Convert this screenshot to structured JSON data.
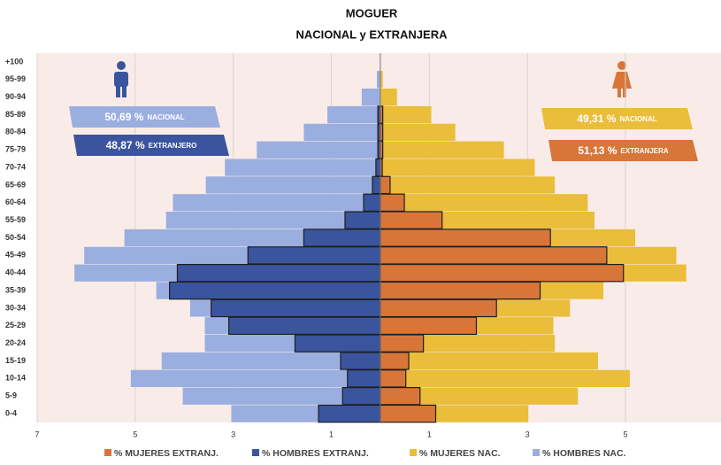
{
  "chart_data": {
    "type": "pyramid",
    "title": "MOGUER",
    "subtitle": "NACIONAL y EXTRANJERA",
    "categories": [
      "+100",
      "95-99",
      "90-94",
      "85-89",
      "80-84",
      "75-79",
      "70-74",
      "65-69",
      "60-64",
      "55-59",
      "50-54",
      "45-49",
      "40-44",
      "35-39",
      "30-34",
      "25-29",
      "20-24",
      "15-19",
      "10-14",
      "5-9",
      "0-4"
    ],
    "series": [
      {
        "name": "% MUJERES EXTRANJ.",
        "color": "#d8763a",
        "outline": true,
        "values": [
          0,
          0,
          0,
          0.05,
          0.05,
          0.05,
          0.04,
          0.2,
          0.49,
          1.26,
          3.47,
          4.62,
          4.96,
          3.26,
          2.37,
          1.96,
          0.88,
          0.58,
          0.52,
          0.81,
          1.13
        ]
      },
      {
        "name": "% HOMBRES EXTRANJ.",
        "color": "#3a559e",
        "outline": true,
        "values": [
          0,
          0,
          0,
          -0.05,
          -0.05,
          -0.05,
          -0.09,
          -0.16,
          -0.34,
          -0.72,
          -1.56,
          -2.7,
          -4.14,
          -4.3,
          -3.45,
          -3.09,
          -1.74,
          -0.81,
          -0.67,
          -0.77,
          -1.26
        ]
      },
      {
        "name": "% MUJERES NAC.",
        "color": "#eabd3a",
        "outline": false,
        "values": [
          0,
          0.05,
          0.34,
          1.04,
          1.53,
          2.52,
          3.15,
          3.56,
          4.23,
          4.37,
          5.2,
          6.04,
          6.24,
          4.55,
          3.87,
          3.53,
          3.56,
          4.44,
          5.09,
          4.03,
          3.02
        ]
      },
      {
        "name": "% HOMBRES NAC.",
        "color": "#9aaee0",
        "outline": false,
        "values": [
          0,
          -0.07,
          -0.38,
          -1.08,
          -1.56,
          -2.52,
          -3.17,
          -3.56,
          -4.23,
          -4.37,
          -5.22,
          -6.04,
          -6.24,
          -4.57,
          -3.88,
          -3.58,
          -3.58,
          -4.46,
          -5.09,
          -4.03,
          -3.04
        ]
      }
    ],
    "xlim": [
      -7,
      6.95
    ],
    "xticks": [
      {
        "value": -7,
        "label": "7"
      },
      {
        "value": -5,
        "label": "5"
      },
      {
        "value": -3,
        "label": "3"
      },
      {
        "value": -1,
        "label": "1"
      },
      1,
      3,
      5
    ],
    "grid": true,
    "annotations": [
      {
        "text": "50,69 %",
        "label": "NACIONAL",
        "color": "#9aaee0"
      },
      {
        "text": "48,87 %",
        "label": "EXTRANJERO",
        "color": "#3a559e"
      },
      {
        "text": "49,31 %",
        "label": "NACIONAL",
        "color": "#eabd3a"
      },
      {
        "text": "51,13 %",
        "label": "EXTRANJERA",
        "color": "#d8763a"
      }
    ]
  }
}
